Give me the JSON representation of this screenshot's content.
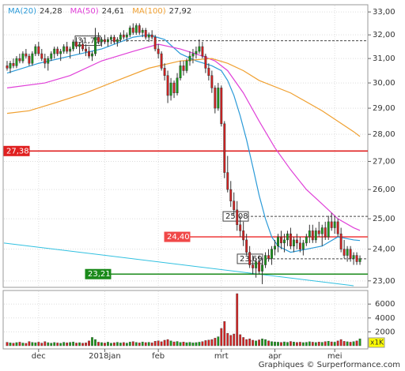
{
  "chart_data": {
    "type": "candlestick",
    "xlim": [
      -1,
      114
    ],
    "xticks": [
      {
        "value": 10,
        "label": "dec"
      },
      {
        "value": 31,
        "label": "2018jan"
      },
      {
        "value": 48,
        "label": "feb"
      },
      {
        "value": 68,
        "label": "mrt"
      },
      {
        "value": 85,
        "label": "apr"
      },
      {
        "value": 104,
        "label": "mei"
      }
    ],
    "ylim": [
      22.85,
      33.25
    ],
    "log_scale": true,
    "grid": true,
    "yticks": [
      {
        "value": 23,
        "label": "23,00"
      },
      {
        "value": 24,
        "label": "24,00"
      },
      {
        "value": 25,
        "label": "25,00"
      },
      {
        "value": 26,
        "label": "26,00"
      },
      {
        "value": 27,
        "label": "27,00"
      },
      {
        "value": 28,
        "label": "28,00"
      },
      {
        "value": 29,
        "label": "29,00"
      },
      {
        "value": 30,
        "label": "30,00"
      },
      {
        "value": 31,
        "label": "31,00"
      },
      {
        "value": 32,
        "label": "32,00"
      },
      {
        "value": 33,
        "label": "33,00"
      }
    ],
    "up_color": "#1a9a1a",
    "down_color": "#d62020",
    "ohlc": [
      [
        30.7,
        30.9,
        30.5,
        30.6
      ],
      [
        30.6,
        30.9,
        30.4,
        30.8
      ],
      [
        30.8,
        31.0,
        30.6,
        30.7
      ],
      [
        30.7,
        31.1,
        30.6,
        31.0
      ],
      [
        31.0,
        31.2,
        30.8,
        30.9
      ],
      [
        30.9,
        31.3,
        30.8,
        31.2
      ],
      [
        31.2,
        31.4,
        31.0,
        31.1
      ],
      [
        31.1,
        31.2,
        30.7,
        30.8
      ],
      [
        30.8,
        31.3,
        30.7,
        31.2
      ],
      [
        31.2,
        31.6,
        31.1,
        31.5
      ],
      [
        31.5,
        31.7,
        31.1,
        31.2
      ],
      [
        31.2,
        31.4,
        30.9,
        31.0
      ],
      [
        31.0,
        31.2,
        30.6,
        30.8
      ],
      [
        30.8,
        31.1,
        30.5,
        31.0
      ],
      [
        31.0,
        31.3,
        30.9,
        31.2
      ],
      [
        31.2,
        31.5,
        31.0,
        31.4
      ],
      [
        31.4,
        31.5,
        31.1,
        31.2
      ],
      [
        31.2,
        31.4,
        30.9,
        31.3
      ],
      [
        31.3,
        31.6,
        31.2,
        31.5
      ],
      [
        31.5,
        31.7,
        31.2,
        31.3
      ],
      [
        31.3,
        31.5,
        31.0,
        31.4
      ],
      [
        31.4,
        31.8,
        31.3,
        31.7
      ],
      [
        31.7,
        31.9,
        31.4,
        31.5
      ],
      [
        31.5,
        31.7,
        31.2,
        31.6
      ],
      [
        31.6,
        31.8,
        31.3,
        31.4
      ],
      [
        31.4,
        31.6,
        31.1,
        31.3
      ],
      [
        31.3,
        31.5,
        31.0,
        31.1
      ],
      [
        31.1,
        31.3,
        30.9,
        31.2
      ],
      [
        31.2,
        32.3,
        31.1,
        31.9
      ],
      [
        31.9,
        32.1,
        31.6,
        31.7
      ],
      [
        31.7,
        31.9,
        31.5,
        31.8
      ],
      [
        31.8,
        32.0,
        31.6,
        31.7
      ],
      [
        31.7,
        31.9,
        31.5,
        31.8
      ],
      [
        31.8,
        32.0,
        31.6,
        31.9
      ],
      [
        31.9,
        32.0,
        31.6,
        31.7
      ],
      [
        31.7,
        31.9,
        31.5,
        31.8
      ],
      [
        31.8,
        32.1,
        31.7,
        32.0
      ],
      [
        32.0,
        32.2,
        31.8,
        31.9
      ],
      [
        31.9,
        32.1,
        31.7,
        32.0
      ],
      [
        32.0,
        32.4,
        31.9,
        32.3
      ],
      [
        32.3,
        32.5,
        32.0,
        32.1
      ],
      [
        32.1,
        32.5,
        32.0,
        32.4
      ],
      [
        32.4,
        32.5,
        32.0,
        32.1
      ],
      [
        32.1,
        32.3,
        31.9,
        32.2
      ],
      [
        32.2,
        32.3,
        31.8,
        31.9
      ],
      [
        31.9,
        32.1,
        31.7,
        32.0
      ],
      [
        32.0,
        32.2,
        31.8,
        31.9
      ],
      [
        31.9,
        32.0,
        31.3,
        31.4
      ],
      [
        31.4,
        31.6,
        31.0,
        31.2
      ],
      [
        31.2,
        31.3,
        30.5,
        30.6
      ],
      [
        30.6,
        30.8,
        30.1,
        30.3
      ],
      [
        30.3,
        30.5,
        29.2,
        29.5
      ],
      [
        29.5,
        30.2,
        29.3,
        30.0
      ],
      [
        30.0,
        30.1,
        29.4,
        29.6
      ],
      [
        29.6,
        30.4,
        29.5,
        30.2
      ],
      [
        30.2,
        30.9,
        30.1,
        30.7
      ],
      [
        30.7,
        30.9,
        30.3,
        30.5
      ],
      [
        30.5,
        31.0,
        30.4,
        30.9
      ],
      [
        30.9,
        31.3,
        30.7,
        31.1
      ],
      [
        31.1,
        31.4,
        30.8,
        31.2
      ],
      [
        31.2,
        31.5,
        31.0,
        31.3
      ],
      [
        31.3,
        31.8,
        31.2,
        31.5
      ],
      [
        31.5,
        31.7,
        31.0,
        31.1
      ],
      [
        31.1,
        31.2,
        30.4,
        30.6
      ],
      [
        30.6,
        30.8,
        30.1,
        30.3
      ],
      [
        30.3,
        30.5,
        29.6,
        29.8
      ],
      [
        29.8,
        29.9,
        28.8,
        29.0
      ],
      [
        29.0,
        30.0,
        28.9,
        29.8
      ],
      [
        29.8,
        29.9,
        28.3,
        28.4
      ],
      [
        28.4,
        28.5,
        26.4,
        26.6
      ],
      [
        26.6,
        27.2,
        25.9,
        26.0
      ],
      [
        26.0,
        26.3,
        25.4,
        25.6
      ],
      [
        25.6,
        25.9,
        25.1,
        25.3
      ],
      [
        25.3,
        25.6,
        24.6,
        24.8
      ],
      [
        24.8,
        25.1,
        24.4,
        24.6
      ],
      [
        24.6,
        24.9,
        24.1,
        24.3
      ],
      [
        24.3,
        24.5,
        23.8,
        23.9
      ],
      [
        23.9,
        24.1,
        23.4,
        23.5
      ],
      [
        23.5,
        23.8,
        23.2,
        23.4
      ],
      [
        23.4,
        23.7,
        23.1,
        23.6
      ],
      [
        23.6,
        23.8,
        23.2,
        23.3
      ],
      [
        23.3,
        23.7,
        22.9,
        23.5
      ],
      [
        23.5,
        23.9,
        23.4,
        23.8
      ],
      [
        23.8,
        24.0,
        23.6,
        23.7
      ],
      [
        23.7,
        24.1,
        23.5,
        24.0
      ],
      [
        24.0,
        24.3,
        23.8,
        24.1
      ],
      [
        24.1,
        24.5,
        23.9,
        24.4
      ],
      [
        24.4,
        24.6,
        24.0,
        24.2
      ],
      [
        24.2,
        24.5,
        23.9,
        24.3
      ],
      [
        24.3,
        24.6,
        24.1,
        24.5
      ],
      [
        24.5,
        24.7,
        24.0,
        24.1
      ],
      [
        24.1,
        24.4,
        23.9,
        24.3
      ],
      [
        24.3,
        24.5,
        24.0,
        24.2
      ],
      [
        24.2,
        24.4,
        23.9,
        24.0
      ],
      [
        24.0,
        24.3,
        23.8,
        24.2
      ],
      [
        24.2,
        24.5,
        24.1,
        24.4
      ],
      [
        24.4,
        24.8,
        24.2,
        24.6
      ],
      [
        24.6,
        24.8,
        24.2,
        24.3
      ],
      [
        24.3,
        24.7,
        24.2,
        24.6
      ],
      [
        24.6,
        24.9,
        24.4,
        24.5
      ],
      [
        24.5,
        24.8,
        24.1,
        24.7
      ],
      [
        24.7,
        24.9,
        24.3,
        24.4
      ],
      [
        24.4,
        25.1,
        24.3,
        24.9
      ],
      [
        24.9,
        25.2,
        24.6,
        24.7
      ],
      [
        24.7,
        25.1,
        24.5,
        24.9
      ],
      [
        24.9,
        25.0,
        24.4,
        24.5
      ],
      [
        24.5,
        24.7,
        23.9,
        24.0
      ],
      [
        24.0,
        24.3,
        23.7,
        23.8
      ],
      [
        23.8,
        24.1,
        23.6,
        24.0
      ],
      [
        24.0,
        24.1,
        23.6,
        23.7
      ],
      [
        23.7,
        23.9,
        23.5,
        23.8
      ],
      [
        23.8,
        23.9,
        23.5,
        23.6
      ],
      [
        23.6,
        23.8,
        23.5,
        23.7
      ]
    ],
    "series": [
      {
        "name": "MA(20)",
        "color": "#2a9ad8",
        "last": {
          "value": 24.28,
          "label": "24,28"
        },
        "x": [
          0,
          10,
          20,
          30,
          40,
          45,
          50,
          55,
          60,
          65,
          68,
          70,
          72,
          74,
          76,
          78,
          80,
          82,
          84,
          86,
          90,
          95,
          100,
          105,
          110,
          112
        ],
        "values": [
          30.4,
          30.8,
          31.1,
          31.4,
          31.9,
          32.0,
          31.8,
          31.2,
          30.9,
          30.7,
          30.5,
          30.1,
          29.5,
          28.7,
          27.8,
          26.8,
          25.8,
          25.0,
          24.4,
          24.1,
          23.9,
          24.0,
          24.1,
          24.4,
          24.3,
          24.28
        ]
      },
      {
        "name": "MA(50)",
        "color": "#e040d8",
        "last": {
          "value": 24.61,
          "label": "24,61"
        },
        "x": [
          0,
          12,
          20,
          30,
          40,
          48,
          55,
          62,
          66,
          70,
          75,
          80,
          85,
          90,
          95,
          100,
          105,
          110,
          112
        ],
        "values": [
          29.8,
          30.0,
          30.3,
          30.9,
          31.3,
          31.6,
          31.4,
          31.1,
          30.9,
          30.5,
          29.6,
          28.5,
          27.5,
          26.7,
          26.0,
          25.5,
          25.0,
          24.7,
          24.61
        ]
      },
      {
        "name": "MA(100)",
        "color": "#f0a030",
        "last": {
          "value": 27.92,
          "label": "27,92"
        },
        "x": [
          0,
          7,
          15,
          25,
          35,
          45,
          55,
          65,
          70,
          75,
          80,
          90,
          100,
          110,
          112
        ],
        "values": [
          28.8,
          28.9,
          29.2,
          29.6,
          30.1,
          30.6,
          30.9,
          31.0,
          30.8,
          30.5,
          30.1,
          29.6,
          28.9,
          28.1,
          27.92
        ]
      }
    ],
    "levels": [
      {
        "value": 31.75,
        "label": "31,75",
        "color": "#444444",
        "dashed": true
      },
      {
        "value": 25.08,
        "label": "25,08",
        "color": "#444444",
        "dashed": true
      },
      {
        "value": 23.69,
        "label": "23,69",
        "color": "#444444",
        "dashed": true
      },
      {
        "value": 27.38,
        "label": "27,38",
        "color": "#e02020",
        "dashed": false
      },
      {
        "value": 24.4,
        "label": "24,40",
        "color": "#f04848",
        "dashed": false
      },
      {
        "value": 23.21,
        "label": "23,21",
        "color": "#1a8a1a",
        "dashed": false
      }
    ],
    "trendline": {
      "color": "#30c0e0",
      "x": [
        -1,
        110
      ],
      "values": [
        24.2,
        22.85
      ]
    },
    "volume": {
      "unit": "x1K",
      "ylim": [
        0,
        7500
      ],
      "yticks": [
        2000,
        4000,
        6000
      ],
      "values": [
        500,
        420,
        380,
        460,
        520,
        400,
        350,
        610,
        480,
        440,
        520,
        390,
        600,
        450,
        380,
        470,
        410,
        360,
        500,
        430,
        480,
        550,
        400,
        450,
        380,
        420,
        700,
        1200,
        900,
        520,
        460,
        400,
        520,
        380,
        440,
        500,
        410,
        470,
        390,
        530,
        600,
        480,
        420,
        550,
        460,
        500,
        430,
        650,
        720,
        580,
        800,
        900,
        700,
        560,
        620,
        480,
        540,
        450,
        500,
        420,
        460,
        520,
        600,
        750,
        820,
        900,
        1100,
        1300,
        2500,
        3500,
        1800,
        1500,
        1700,
        7500,
        1600,
        1200,
        900,
        1000,
        800,
        700,
        850,
        1000,
        900,
        700,
        600,
        550,
        520,
        480,
        560,
        500,
        620,
        540,
        480,
        520,
        460,
        500,
        580,
        520,
        470,
        540,
        500,
        600,
        650,
        560,
        520,
        700,
        900,
        640,
        580,
        520,
        600,
        700,
        1000
      ]
    },
    "credit": "Graphiques © Surperformance.com"
  }
}
